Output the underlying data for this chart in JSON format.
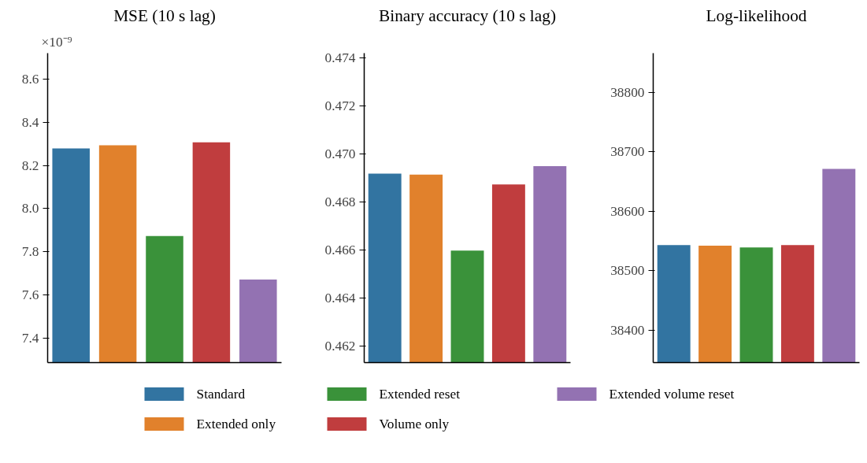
{
  "chart_data": [
    {
      "type": "bar",
      "title": "MSE (10 s lag)",
      "annotations": [
        "×10⁻⁹"
      ],
      "categories": [
        null
      ],
      "ylim": [
        7.287,
        8.72
      ],
      "yticks": [
        7.4,
        7.6,
        7.8,
        {
          "value": 8,
          "label": "8.0"
        },
        8.2,
        8.4,
        8.6
      ],
      "legend": "bottom",
      "series": [
        {
          "name": "Standard",
          "color": "#3274a1",
          "values": [
            8.279
          ]
        },
        {
          "name": "Extended only",
          "color": "#e1812c",
          "values": [
            8.293
          ]
        },
        {
          "name": "Extended reset",
          "color": "#3a923a",
          "values": [
            7.873
          ]
        },
        {
          "name": "Volume only",
          "color": "#c03d3e",
          "values": [
            8.307
          ]
        },
        {
          "name": "Extended volume reset",
          "color": "#9372b2",
          "values": [
            7.672
          ]
        }
      ]
    },
    {
      "type": "bar",
      "title": "Binary accuracy (10 s lag)",
      "categories": [
        null
      ],
      "ylim": [
        0.4613,
        0.4742
      ],
      "yticks": [
        0.462,
        0.464,
        0.466,
        0.468,
        {
          "value": 0.47,
          "label": "0.470"
        },
        0.472,
        0.474
      ],
      "series": [
        {
          "color": "#3274a1",
          "values": [
            0.46918
          ]
        },
        {
          "color": "#e1812c",
          "values": [
            0.46914
          ]
        },
        {
          "color": "#3a923a",
          "values": [
            0.46597
          ]
        },
        {
          "color": "#c03d3e",
          "values": [
            0.46873
          ]
        },
        {
          "color": "#9372b2",
          "values": [
            0.46949
          ]
        }
      ]
    },
    {
      "type": "bar",
      "title": "Log-likelihood",
      "categories": [
        null
      ],
      "ylim": [
        38345,
        38866
      ],
      "yticks": [
        38400,
        38500,
        38600,
        38700,
        38800
      ],
      "series": [
        {
          "color": "#3274a1",
          "values": [
            38543
          ]
        },
        {
          "color": "#e1812c",
          "values": [
            38542
          ]
        },
        {
          "color": "#3a923a",
          "values": [
            38539
          ]
        },
        {
          "color": "#c03d3e",
          "values": [
            38543
          ]
        },
        {
          "color": "#9372b2",
          "values": [
            38671
          ]
        }
      ]
    }
  ]
}
